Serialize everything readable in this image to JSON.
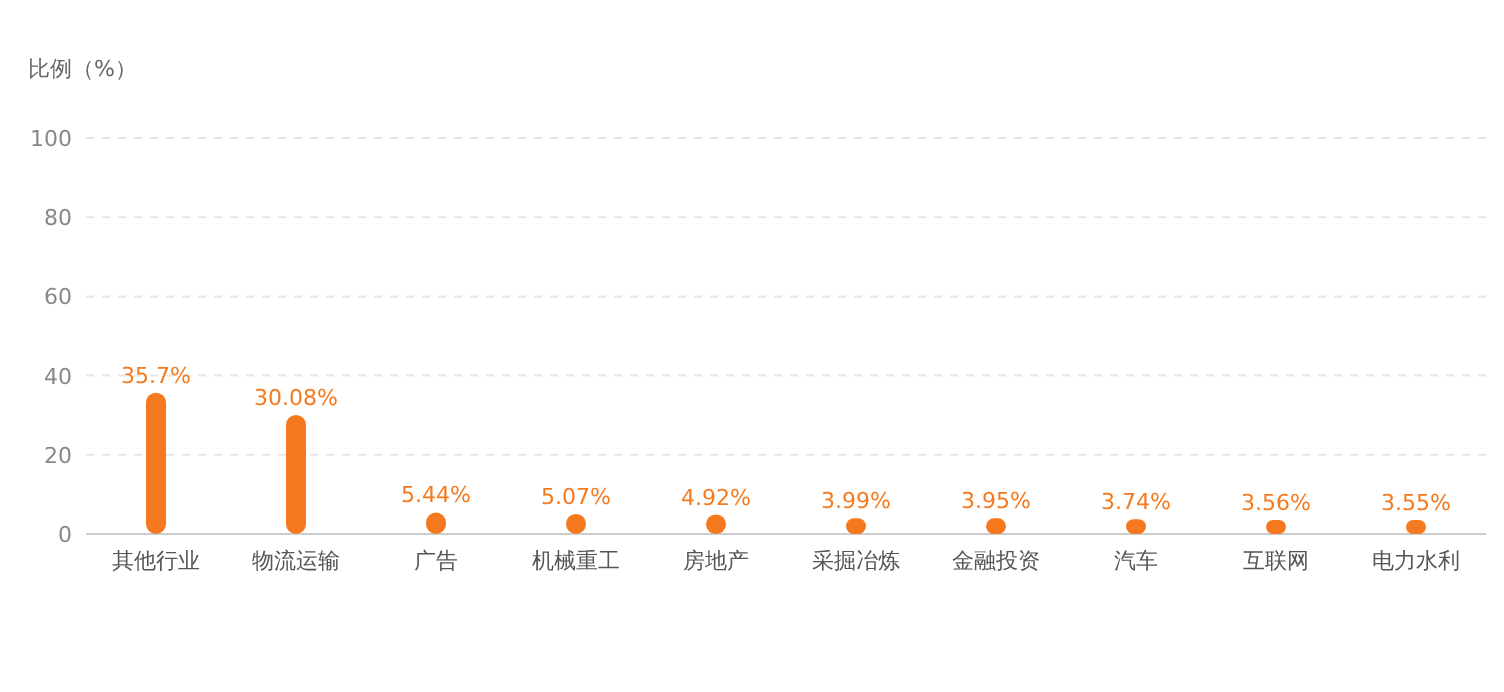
{
  "chart_data": {
    "type": "bar",
    "ylabel": "比例（%）",
    "categories": [
      "其他行业",
      "物流运输",
      "广告",
      "机械重工",
      "房地产",
      "采掘冶炼",
      "金融投资",
      "汽车",
      "互联网",
      "电力水利"
    ],
    "values": [
      35.7,
      30.08,
      5.44,
      5.07,
      4.92,
      3.99,
      3.95,
      3.74,
      3.56,
      3.55
    ],
    "value_labels": [
      "35.7%",
      "30.08%",
      "5.44%",
      "5.07%",
      "4.92%",
      "3.99%",
      "3.95%",
      "3.74%",
      "3.56%",
      "3.55%"
    ],
    "color": "#f57a1f",
    "ylim": [
      0,
      100
    ],
    "yticks": [
      0,
      20,
      40,
      60,
      80,
      100
    ],
    "grid": "y"
  }
}
